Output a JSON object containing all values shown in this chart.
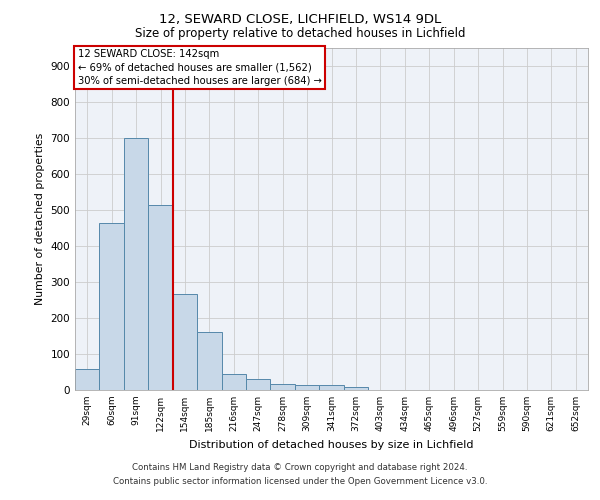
{
  "title1": "12, SEWARD CLOSE, LICHFIELD, WS14 9DL",
  "title2": "Size of property relative to detached houses in Lichfield",
  "xlabel": "Distribution of detached houses by size in Lichfield",
  "ylabel": "Number of detached properties",
  "categories": [
    "29sqm",
    "60sqm",
    "91sqm",
    "122sqm",
    "154sqm",
    "185sqm",
    "216sqm",
    "247sqm",
    "278sqm",
    "309sqm",
    "341sqm",
    "372sqm",
    "403sqm",
    "434sqm",
    "465sqm",
    "496sqm",
    "527sqm",
    "559sqm",
    "590sqm",
    "621sqm",
    "652sqm"
  ],
  "values": [
    58,
    462,
    700,
    512,
    265,
    160,
    45,
    30,
    16,
    14,
    13,
    7,
    0,
    0,
    0,
    0,
    0,
    0,
    0,
    0,
    0
  ],
  "bar_color": "#c8d8e8",
  "bar_edge_color": "#5588aa",
  "red_line_x": 3.5,
  "annotation_lines": [
    "12 SEWARD CLOSE: 142sqm",
    "← 69% of detached houses are smaller (1,562)",
    "30% of semi-detached houses are larger (684) →"
  ],
  "annotation_box_color": "#ffffff",
  "annotation_box_edge": "#cc0000",
  "red_line_color": "#cc0000",
  "ylim": [
    0,
    950
  ],
  "yticks": [
    0,
    100,
    200,
    300,
    400,
    500,
    600,
    700,
    800,
    900
  ],
  "grid_color": "#cccccc",
  "bg_color": "#eef2f8",
  "footer1": "Contains HM Land Registry data © Crown copyright and database right 2024.",
  "footer2": "Contains public sector information licensed under the Open Government Licence v3.0."
}
